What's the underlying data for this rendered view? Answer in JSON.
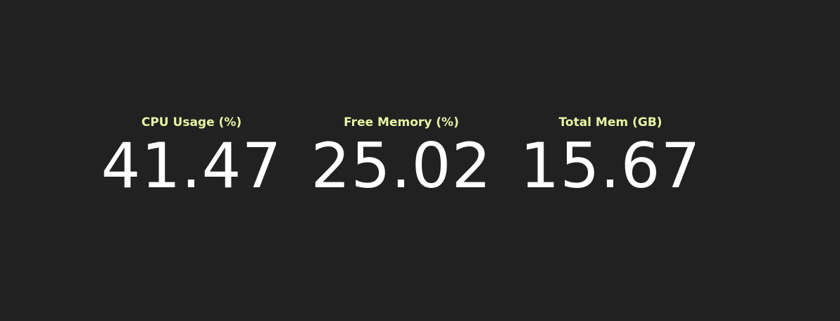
{
  "stats": [
    {
      "label": "CPU Usage (%)",
      "value": "41.47"
    },
    {
      "label": "Free Memory (%)",
      "value": "25.02"
    },
    {
      "label": "Total Mem (GB)",
      "value": "15.67"
    }
  ],
  "colors": {
    "background": "#212121",
    "label": "#e8f5a3",
    "value": "#ffffff"
  }
}
